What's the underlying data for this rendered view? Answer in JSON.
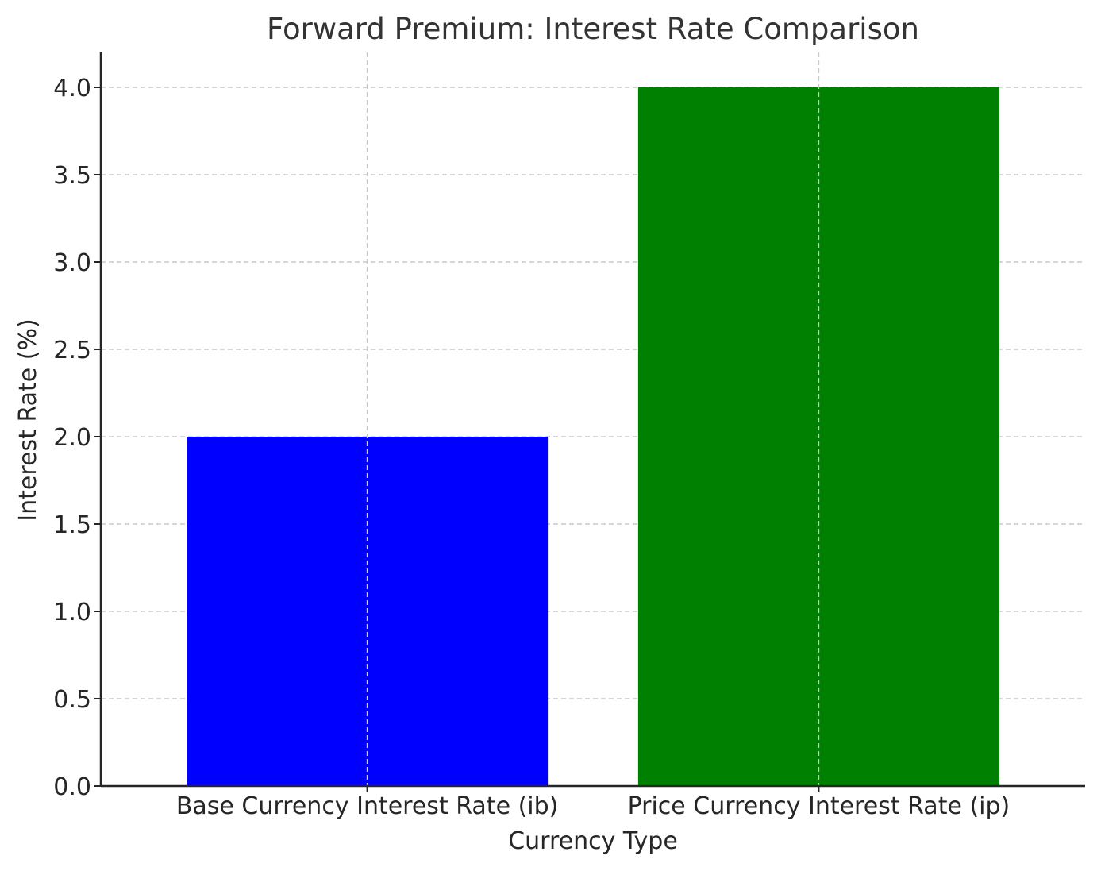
{
  "chart_data": {
    "type": "bar",
    "title": "Forward Premium: Interest Rate Comparison",
    "xlabel": "Currency Type",
    "ylabel": "Interest Rate (%)",
    "categories": [
      "Base Currency Interest Rate (ib)",
      "Price Currency Interest Rate (ip)"
    ],
    "values": [
      2.0,
      4.0
    ],
    "colors": [
      "#0000ff",
      "#008000"
    ],
    "ylim": [
      0,
      4.2
    ],
    "yticks": [
      0.0,
      0.5,
      1.0,
      1.5,
      2.0,
      2.5,
      3.0,
      3.5,
      4.0
    ],
    "ytick_labels": [
      "0.0",
      "0.5",
      "1.0",
      "1.5",
      "2.0",
      "2.5",
      "3.0",
      "3.5",
      "4.0"
    ],
    "grid": true
  }
}
